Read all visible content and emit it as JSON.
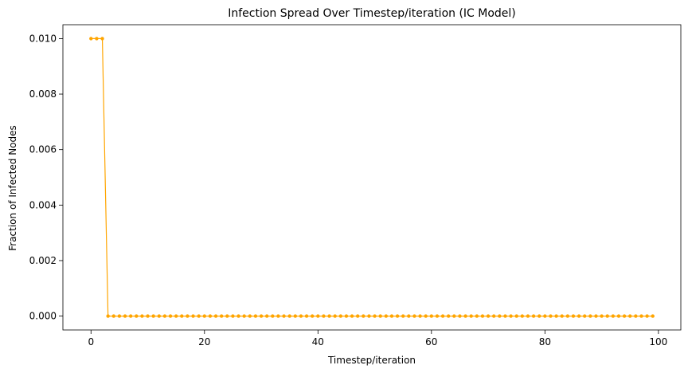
{
  "chart_data": {
    "type": "line",
    "title": "Infection Spread Over Timestep/iteration (IC Model)",
    "xlabel": "Timestep/iteration",
    "ylabel": "Fraction of Infected Nodes",
    "xlim": [
      -4.95,
      103.95
    ],
    "ylim": [
      -0.0005,
      0.0105
    ],
    "x_ticks": [
      0,
      20,
      40,
      60,
      80,
      100
    ],
    "x_tick_labels": [
      "0",
      "20",
      "40",
      "60",
      "80",
      "100"
    ],
    "y_ticks": [
      0.0,
      0.002,
      0.004,
      0.006,
      0.008,
      0.01
    ],
    "y_tick_labels": [
      "0.000",
      "0.002",
      "0.004",
      "0.006",
      "0.008",
      "0.010"
    ],
    "grid": false,
    "legend": "none",
    "series": [
      {
        "color": "#ffa500",
        "marker": "circle",
        "x": [
          0,
          1,
          2,
          3,
          4,
          5,
          6,
          7,
          8,
          9,
          10,
          11,
          12,
          13,
          14,
          15,
          16,
          17,
          18,
          19,
          20,
          21,
          22,
          23,
          24,
          25,
          26,
          27,
          28,
          29,
          30,
          31,
          32,
          33,
          34,
          35,
          36,
          37,
          38,
          39,
          40,
          41,
          42,
          43,
          44,
          45,
          46,
          47,
          48,
          49,
          50,
          51,
          52,
          53,
          54,
          55,
          56,
          57,
          58,
          59,
          60,
          61,
          62,
          63,
          64,
          65,
          66,
          67,
          68,
          69,
          70,
          71,
          72,
          73,
          74,
          75,
          76,
          77,
          78,
          79,
          80,
          81,
          82,
          83,
          84,
          85,
          86,
          87,
          88,
          89,
          90,
          91,
          92,
          93,
          94,
          95,
          96,
          97,
          98,
          99
        ],
        "y": [
          0.01,
          0.01,
          0.01,
          0,
          0,
          0,
          0,
          0,
          0,
          0,
          0,
          0,
          0,
          0,
          0,
          0,
          0,
          0,
          0,
          0,
          0,
          0,
          0,
          0,
          0,
          0,
          0,
          0,
          0,
          0,
          0,
          0,
          0,
          0,
          0,
          0,
          0,
          0,
          0,
          0,
          0,
          0,
          0,
          0,
          0,
          0,
          0,
          0,
          0,
          0,
          0,
          0,
          0,
          0,
          0,
          0,
          0,
          0,
          0,
          0,
          0,
          0,
          0,
          0,
          0,
          0,
          0,
          0,
          0,
          0,
          0,
          0,
          0,
          0,
          0,
          0,
          0,
          0,
          0,
          0,
          0,
          0,
          0,
          0,
          0,
          0,
          0,
          0,
          0,
          0,
          0,
          0,
          0,
          0,
          0,
          0,
          0,
          0,
          0,
          0
        ]
      }
    ]
  }
}
